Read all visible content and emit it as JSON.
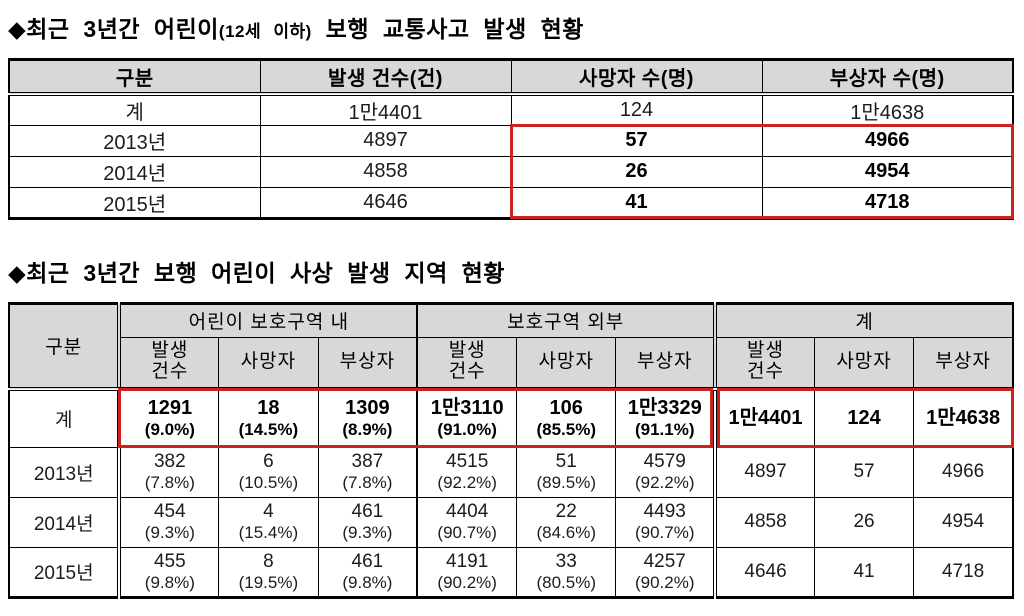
{
  "colors": {
    "header_bg": "#d8d8d8",
    "highlight_red": "#cc2222",
    "border": "#000000"
  },
  "title1": {
    "bullet": "◆",
    "main1": "최근 3년간 어린이",
    "paren": "(12세 이하)",
    "main2": " 보행 교통사고 발생 현황"
  },
  "title2": {
    "bullet": "◆",
    "main": "최근 3년간 보행 어린이 사상 발생 지역 현황"
  },
  "table1": {
    "headers": [
      "구분",
      "발생 건수(건)",
      "사망자 수(명)",
      "부상자 수(명)"
    ],
    "rows": [
      {
        "label": "계",
        "highlight": false,
        "cells": [
          "1만4401",
          "124",
          "1만4638"
        ]
      },
      {
        "label": "2013년",
        "highlight": true,
        "cells": [
          "4897",
          "57",
          "4966"
        ]
      },
      {
        "label": "2014년",
        "highlight": true,
        "cells": [
          "4858",
          "26",
          "4954"
        ]
      },
      {
        "label": "2015년",
        "highlight": true,
        "cells": [
          "4646",
          "41",
          "4718"
        ]
      }
    ]
  },
  "table2": {
    "corner": "구분",
    "groups": [
      {
        "label": "어린이 보호구역 내",
        "cols": [
          "발생\n건수",
          "사망자",
          "부상자"
        ]
      },
      {
        "label": "보호구역 외부",
        "cols": [
          "발생\n건수",
          "사망자",
          "부상자"
        ]
      },
      {
        "label": "계",
        "cols": [
          "발생\n건수",
          "사망자",
          "부상자"
        ]
      }
    ],
    "rows": [
      {
        "label": "계",
        "total": true,
        "cells": [
          [
            "1291",
            "(9.0%)"
          ],
          [
            "18",
            "(14.5%)"
          ],
          [
            "1309",
            "(8.9%)"
          ],
          [
            "1만3110",
            "(91.0%)"
          ],
          [
            "106",
            "(85.5%)"
          ],
          [
            "1만3329",
            "(91.1%)"
          ],
          [
            "1만4401",
            ""
          ],
          [
            "124",
            ""
          ],
          [
            "1만4638",
            ""
          ]
        ]
      },
      {
        "label": "2013년",
        "total": false,
        "cells": [
          [
            "382",
            "(7.8%)"
          ],
          [
            "6",
            "(10.5%)"
          ],
          [
            "387",
            "(7.8%)"
          ],
          [
            "4515",
            "(92.2%)"
          ],
          [
            "51",
            "(89.5%)"
          ],
          [
            "4579",
            "(92.2%)"
          ],
          [
            "4897",
            ""
          ],
          [
            "57",
            ""
          ],
          [
            "4966",
            ""
          ]
        ]
      },
      {
        "label": "2014년",
        "total": false,
        "cells": [
          [
            "454",
            "(9.3%)"
          ],
          [
            "4",
            "(15.4%)"
          ],
          [
            "461",
            "(9.3%)"
          ],
          [
            "4404",
            "(90.7%)"
          ],
          [
            "22",
            "(84.6%)"
          ],
          [
            "4493",
            "(90.7%)"
          ],
          [
            "4858",
            ""
          ],
          [
            "26",
            ""
          ],
          [
            "4954",
            ""
          ]
        ]
      },
      {
        "label": "2015년",
        "total": false,
        "cells": [
          [
            "455",
            "(9.8%)"
          ],
          [
            "8",
            "(19.5%)"
          ],
          [
            "461",
            "(9.8%)"
          ],
          [
            "4191",
            "(90.2%)"
          ],
          [
            "33",
            "(80.5%)"
          ],
          [
            "4257",
            "(90.2%)"
          ],
          [
            "4646",
            ""
          ],
          [
            "41",
            ""
          ],
          [
            "4718",
            ""
          ]
        ]
      }
    ]
  }
}
